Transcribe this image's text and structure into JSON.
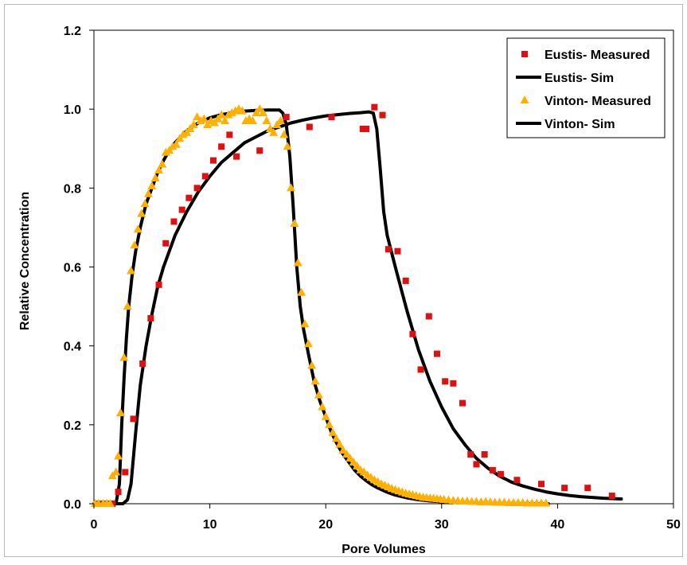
{
  "chart_data": {
    "type": "scatter",
    "title": "",
    "xlabel": "Pore Volumes",
    "ylabel": "Relative Concentration",
    "xlim": [
      0,
      50
    ],
    "ylim": [
      0,
      1.2
    ],
    "x_ticks": [
      "0",
      "10",
      "20",
      "30",
      "40",
      "50"
    ],
    "y_ticks": [
      "0.0",
      "0.2",
      "0.4",
      "0.6",
      "0.8",
      "1.0",
      "1.2"
    ],
    "grid": false,
    "legend_position": "top-right",
    "series": [
      {
        "name": "Eustis- Measured",
        "kind": "markers",
        "marker": "square",
        "color": "#e01010",
        "points": [
          [
            0.3,
            0
          ],
          [
            0.8,
            0
          ],
          [
            1.3,
            0
          ],
          [
            1.6,
            0
          ],
          [
            2.1,
            0.03
          ],
          [
            2.7,
            0.08
          ],
          [
            3.4,
            0.215
          ],
          [
            4.2,
            0.355
          ],
          [
            4.9,
            0.47
          ],
          [
            5.6,
            0.555
          ],
          [
            6.2,
            0.66
          ],
          [
            6.9,
            0.715
          ],
          [
            7.6,
            0.745
          ],
          [
            8.2,
            0.775
          ],
          [
            8.9,
            0.8
          ],
          [
            9.6,
            0.83
          ],
          [
            10.3,
            0.87
          ],
          [
            11.0,
            0.905
          ],
          [
            11.7,
            0.935
          ],
          [
            12.3,
            0.88
          ],
          [
            14.3,
            0.895
          ],
          [
            16.6,
            0.98
          ],
          [
            18.6,
            0.955
          ],
          [
            20.5,
            0.98
          ],
          [
            23.2,
            0.95
          ],
          [
            23.5,
            0.95
          ],
          [
            24.2,
            1.005
          ],
          [
            24.9,
            0.985
          ],
          [
            25.4,
            0.645
          ],
          [
            26.2,
            0.64
          ],
          [
            26.9,
            0.565
          ],
          [
            27.5,
            0.43
          ],
          [
            28.2,
            0.34
          ],
          [
            28.9,
            0.475
          ],
          [
            29.6,
            0.38
          ],
          [
            30.3,
            0.31
          ],
          [
            31.0,
            0.305
          ],
          [
            31.8,
            0.255
          ],
          [
            32.5,
            0.125
          ],
          [
            33.0,
            0.1
          ],
          [
            33.7,
            0.125
          ],
          [
            34.4,
            0.085
          ],
          [
            35.1,
            0.075
          ],
          [
            36.5,
            0.06
          ],
          [
            38.6,
            0.05
          ],
          [
            40.6,
            0.04
          ],
          [
            42.6,
            0.04
          ],
          [
            44.7,
            0.02
          ]
        ]
      },
      {
        "name": "Eustis- Sim",
        "kind": "line",
        "color": "#000000",
        "points": [
          [
            0,
            0
          ],
          [
            2.5,
            0
          ],
          [
            2.9,
            0.01
          ],
          [
            3.2,
            0.05
          ],
          [
            3.6,
            0.18
          ],
          [
            4.0,
            0.3
          ],
          [
            4.5,
            0.4
          ],
          [
            5.0,
            0.48
          ],
          [
            5.5,
            0.55
          ],
          [
            6.0,
            0.6
          ],
          [
            7.0,
            0.68
          ],
          [
            8.0,
            0.74
          ],
          [
            9.0,
            0.79
          ],
          [
            10.0,
            0.83
          ],
          [
            11.0,
            0.865
          ],
          [
            12.0,
            0.89
          ],
          [
            13.0,
            0.915
          ],
          [
            14.0,
            0.93
          ],
          [
            15.0,
            0.945
          ],
          [
            16.0,
            0.955
          ],
          [
            17.0,
            0.965
          ],
          [
            18.0,
            0.972
          ],
          [
            19.0,
            0.978
          ],
          [
            20.0,
            0.983
          ],
          [
            21.0,
            0.986
          ],
          [
            22.0,
            0.989
          ],
          [
            23.0,
            0.991
          ],
          [
            23.7,
            0.993
          ],
          [
            24.1,
            0.99
          ],
          [
            24.4,
            0.95
          ],
          [
            24.7,
            0.85
          ],
          [
            25.0,
            0.74
          ],
          [
            25.3,
            0.68
          ],
          [
            26.0,
            0.6
          ],
          [
            27.0,
            0.49
          ],
          [
            28.0,
            0.39
          ],
          [
            29.0,
            0.31
          ],
          [
            30.0,
            0.245
          ],
          [
            31.0,
            0.19
          ],
          [
            32.0,
            0.15
          ],
          [
            33.0,
            0.115
          ],
          [
            34.0,
            0.09
          ],
          [
            35.0,
            0.07
          ],
          [
            36.0,
            0.055
          ],
          [
            37.0,
            0.045
          ],
          [
            38.0,
            0.037
          ],
          [
            39.0,
            0.03
          ],
          [
            40.0,
            0.025
          ],
          [
            41.0,
            0.021
          ],
          [
            42.0,
            0.018
          ],
          [
            43.0,
            0.016
          ],
          [
            44.0,
            0.014
          ],
          [
            45.5,
            0.012
          ]
        ]
      },
      {
        "name": "Vinton- Measured",
        "kind": "markers",
        "marker": "triangle",
        "color": "#ffb000",
        "points": [
          [
            0.1,
            0
          ],
          [
            0.4,
            0
          ],
          [
            0.8,
            0
          ],
          [
            1.1,
            0
          ],
          [
            1.4,
            0
          ],
          [
            1.6,
            0.07
          ],
          [
            1.9,
            0.08
          ],
          [
            2.1,
            0.12
          ],
          [
            2.3,
            0.23
          ],
          [
            2.6,
            0.37
          ],
          [
            2.9,
            0.5
          ],
          [
            3.2,
            0.59
          ],
          [
            3.5,
            0.655
          ],
          [
            3.8,
            0.695
          ],
          [
            4.1,
            0.735
          ],
          [
            4.4,
            0.76
          ],
          [
            4.7,
            0.785
          ],
          [
            5.0,
            0.805
          ],
          [
            5.3,
            0.825
          ],
          [
            5.6,
            0.845
          ],
          [
            5.9,
            0.86
          ],
          [
            6.2,
            0.89
          ],
          [
            6.5,
            0.895
          ],
          [
            6.8,
            0.905
          ],
          [
            7.1,
            0.91
          ],
          [
            7.4,
            0.925
          ],
          [
            7.7,
            0.935
          ],
          [
            8.0,
            0.94
          ],
          [
            8.3,
            0.95
          ],
          [
            8.6,
            0.96
          ],
          [
            8.9,
            0.98
          ],
          [
            9.2,
            0.97
          ],
          [
            9.5,
            0.975
          ],
          [
            9.8,
            0.96
          ],
          [
            10.1,
            0.97
          ],
          [
            10.4,
            0.965
          ],
          [
            10.7,
            0.975
          ],
          [
            11.0,
            0.985
          ],
          [
            11.3,
            0.97
          ],
          [
            11.6,
            0.985
          ],
          [
            11.9,
            0.99
          ],
          [
            12.2,
            0.995
          ],
          [
            12.5,
            1.0
          ],
          [
            12.8,
            0.995
          ],
          [
            13.1,
            0.97
          ],
          [
            13.4,
            0.975
          ],
          [
            13.7,
            0.97
          ],
          [
            14.0,
            0.99
          ],
          [
            14.3,
            1.0
          ],
          [
            14.6,
            0.99
          ],
          [
            14.9,
            0.97
          ],
          [
            15.2,
            0.95
          ],
          [
            15.5,
            0.94
          ],
          [
            15.8,
            0.96
          ],
          [
            16.1,
            0.97
          ],
          [
            16.4,
            0.935
          ],
          [
            16.7,
            0.905
          ],
          [
            17.0,
            0.8
          ],
          [
            17.3,
            0.71
          ],
          [
            17.6,
            0.61
          ],
          [
            17.9,
            0.535
          ],
          [
            18.2,
            0.455
          ],
          [
            18.5,
            0.405
          ],
          [
            18.8,
            0.35
          ],
          [
            19.1,
            0.31
          ],
          [
            19.4,
            0.275
          ],
          [
            19.7,
            0.245
          ],
          [
            20.0,
            0.22
          ],
          [
            20.3,
            0.2
          ],
          [
            20.6,
            0.18
          ],
          [
            20.9,
            0.165
          ],
          [
            21.2,
            0.15
          ],
          [
            21.5,
            0.135
          ],
          [
            21.8,
            0.125
          ],
          [
            22.1,
            0.115
          ],
          [
            22.4,
            0.105
          ],
          [
            22.7,
            0.095
          ],
          [
            23.0,
            0.085
          ],
          [
            23.3,
            0.08
          ],
          [
            23.6,
            0.072
          ],
          [
            23.9,
            0.066
          ],
          [
            24.2,
            0.06
          ],
          [
            24.5,
            0.055
          ],
          [
            24.8,
            0.05
          ],
          [
            25.1,
            0.046
          ],
          [
            25.4,
            0.042
          ],
          [
            25.7,
            0.038
          ],
          [
            26.0,
            0.035
          ],
          [
            26.3,
            0.032
          ],
          [
            26.6,
            0.029
          ],
          [
            26.9,
            0.026
          ],
          [
            27.2,
            0.024
          ],
          [
            27.5,
            0.022
          ],
          [
            27.8,
            0.02
          ],
          [
            28.1,
            0.018
          ],
          [
            28.4,
            0.016
          ],
          [
            28.7,
            0.015
          ],
          [
            29.0,
            0.014
          ],
          [
            29.3,
            0.013
          ],
          [
            29.6,
            0.012
          ],
          [
            29.9,
            0.011
          ],
          [
            30.2,
            0.01
          ],
          [
            30.6,
            0.009
          ],
          [
            31.0,
            0.008
          ],
          [
            31.4,
            0.007
          ],
          [
            31.8,
            0.006
          ],
          [
            32.2,
            0.006
          ],
          [
            32.6,
            0.005
          ],
          [
            33.0,
            0.005
          ],
          [
            33.4,
            0.004
          ],
          [
            33.8,
            0.005
          ],
          [
            34.2,
            0.004
          ],
          [
            34.6,
            0.003
          ],
          [
            35.0,
            0.003
          ],
          [
            35.4,
            0.003
          ],
          [
            35.8,
            0.002
          ],
          [
            36.2,
            0.002
          ],
          [
            36.6,
            0.002
          ],
          [
            37.0,
            0.002
          ],
          [
            37.4,
            0.001
          ],
          [
            37.8,
            0.001
          ],
          [
            38.2,
            0.001
          ],
          [
            38.6,
            0.001
          ],
          [
            39.0,
            0.001
          ]
        ]
      },
      {
        "name": "Vinton- Sim",
        "kind": "line",
        "color": "#000000",
        "points": [
          [
            0,
            0
          ],
          [
            1.9,
            0
          ],
          [
            2.2,
            0.05
          ],
          [
            2.4,
            0.2
          ],
          [
            2.6,
            0.32
          ],
          [
            2.8,
            0.42
          ],
          [
            3.0,
            0.5
          ],
          [
            3.3,
            0.58
          ],
          [
            3.6,
            0.64
          ],
          [
            4.0,
            0.7
          ],
          [
            4.5,
            0.76
          ],
          [
            5.0,
            0.8
          ],
          [
            5.5,
            0.84
          ],
          [
            6.0,
            0.87
          ],
          [
            6.5,
            0.895
          ],
          [
            7.0,
            0.915
          ],
          [
            8.0,
            0.945
          ],
          [
            9.0,
            0.965
          ],
          [
            10.0,
            0.978
          ],
          [
            11.0,
            0.986
          ],
          [
            12.0,
            0.991
          ],
          [
            13.0,
            0.995
          ],
          [
            14.0,
            0.997
          ],
          [
            15.0,
            0.998
          ],
          [
            16.0,
            0.998
          ],
          [
            16.3,
            0.99
          ],
          [
            16.6,
            0.96
          ],
          [
            16.9,
            0.88
          ],
          [
            17.2,
            0.75
          ],
          [
            17.5,
            0.6
          ],
          [
            17.8,
            0.5
          ],
          [
            18.1,
            0.44
          ],
          [
            18.5,
            0.38
          ],
          [
            19.0,
            0.31
          ],
          [
            19.5,
            0.26
          ],
          [
            20.0,
            0.22
          ],
          [
            20.5,
            0.18
          ],
          [
            21.0,
            0.15
          ],
          [
            21.5,
            0.125
          ],
          [
            22.0,
            0.105
          ],
          [
            22.5,
            0.085
          ],
          [
            23.0,
            0.07
          ],
          [
            23.5,
            0.058
          ],
          [
            24.0,
            0.048
          ],
          [
            24.5,
            0.04
          ],
          [
            25.0,
            0.033
          ],
          [
            25.5,
            0.027
          ],
          [
            26.0,
            0.022
          ],
          [
            27.0,
            0.015
          ],
          [
            28.0,
            0.01
          ],
          [
            29.0,
            0.007
          ],
          [
            30.0,
            0.005
          ],
          [
            31.0,
            0.003
          ],
          [
            32.0,
            0.002
          ],
          [
            33.0,
            0.0015
          ],
          [
            34.0,
            0.001
          ],
          [
            35.0,
            0.0006
          ],
          [
            36.0,
            0.0004
          ],
          [
            37.0,
            0.0002
          ],
          [
            38.0,
            0.0001
          ],
          [
            39.2,
            0
          ]
        ]
      }
    ]
  }
}
